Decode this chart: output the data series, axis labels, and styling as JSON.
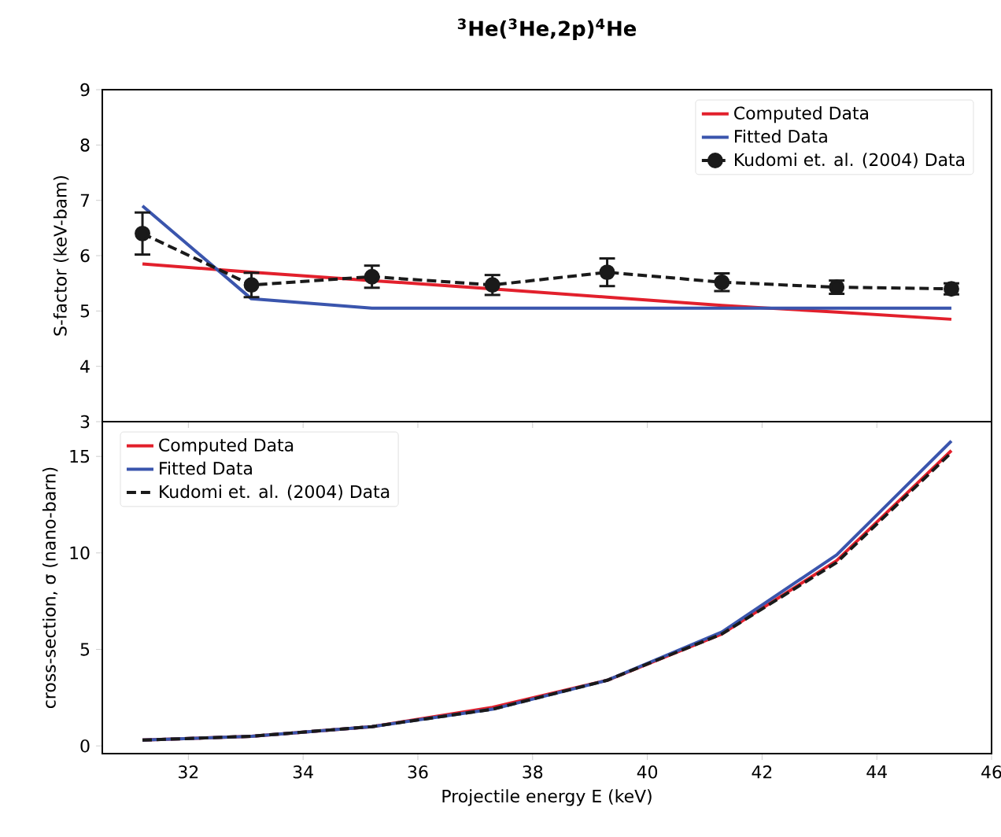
{
  "chart_data": [
    {
      "type": "line",
      "title": "**$^{3}$He($^{3}$He,2p)$^{4}$He**",
      "ylabel": "S-factor (keV-bam)",
      "x": [
        31.2,
        33.1,
        35.2,
        37.3,
        39.3,
        41.3,
        43.3,
        45.3
      ],
      "xlim": [
        30.5,
        46
      ],
      "xticks": [
        32,
        34,
        36,
        38,
        40,
        42,
        44,
        46
      ],
      "ylim": [
        3,
        9
      ],
      "yticks": [
        3,
        4,
        5,
        6,
        7,
        8,
        9
      ],
      "tick_labels": "y",
      "legend": "top right",
      "series": [
        {
          "name": "Computed Data",
          "color": "#e2202c",
          "values": [
            5.85,
            5.7,
            5.55,
            5.4,
            5.25,
            5.1,
            4.98,
            4.85
          ]
        },
        {
          "name": "Fitted Data",
          "color": "#3a55ad",
          "values": [
            6.9,
            5.22,
            5.05,
            5.05,
            5.05,
            5.05,
            5.05,
            5.05
          ]
        },
        {
          "name": "Kudomi et. al. (2004) Data",
          "color": "#1a1a1a",
          "marker": "circle",
          "line_style": "dashed",
          "values": [
            6.4,
            5.47,
            5.62,
            5.47,
            5.7,
            5.52,
            5.43,
            5.4
          ],
          "errors": [
            0.38,
            0.22,
            0.2,
            0.18,
            0.25,
            0.16,
            0.12,
            0.1
          ]
        }
      ]
    },
    {
      "type": "line",
      "xlabel": "Projectile energy E (keV)",
      "ylabel": "cross-section, σ (nano-barn)",
      "x": [
        31.2,
        33.1,
        35.2,
        37.3,
        39.3,
        41.3,
        43.3,
        45.3
      ],
      "xlim": [
        30.5,
        46
      ],
      "xticks": [
        32,
        34,
        36,
        38,
        40,
        42,
        44,
        46
      ],
      "ylim": [
        -0.4,
        16.8
      ],
      "yticks": [
        0,
        5,
        10,
        15
      ],
      "legend": "top left",
      "series": [
        {
          "name": "Computed Data",
          "color": "#e2202c",
          "values": [
            0.3,
            0.5,
            1.0,
            2.0,
            3.4,
            5.8,
            9.6,
            15.3
          ]
        },
        {
          "name": "Fitted Data",
          "color": "#3a55ad",
          "values": [
            0.3,
            0.5,
            1.0,
            1.9,
            3.4,
            5.9,
            9.9,
            15.8
          ]
        },
        {
          "name": "Kudomi et. al. (2004) Data",
          "color": "#1a1a1a",
          "line_style": "dashed",
          "values": [
            0.3,
            0.5,
            1.0,
            1.9,
            3.4,
            5.8,
            9.5,
            15.2
          ]
        }
      ]
    }
  ]
}
